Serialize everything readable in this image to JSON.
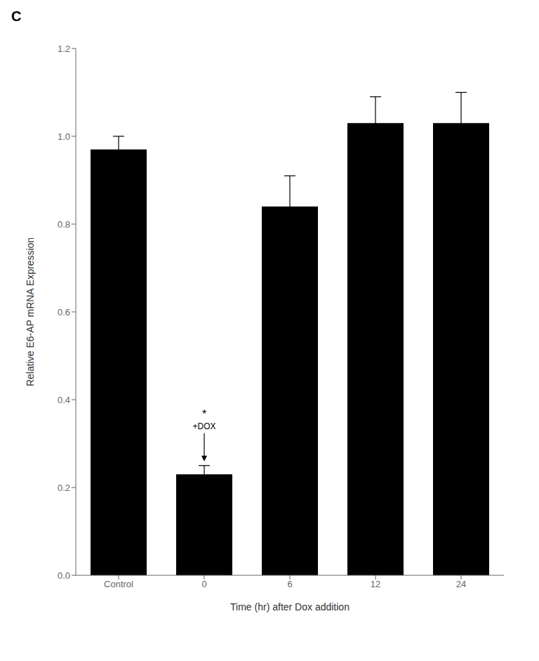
{
  "chart_data": {
    "type": "bar",
    "title": "C",
    "categories": [
      "Control",
      "0",
      "6",
      "12",
      "24"
    ],
    "values": [
      0.97,
      0.23,
      0.84,
      1.03,
      1.03
    ],
    "errors": [
      0.03,
      0.02,
      0.07,
      0.06,
      0.07
    ],
    "color": "#000000",
    "xlabel": "Time (hr) after Dox addition",
    "ylabel": "Relative E6-AP mRNA Expression",
    "ylim": [
      0,
      1.2
    ],
    "yticks": [
      {
        "value": 0.0,
        "label": "0.0"
      },
      0.2,
      0.4,
      0.6,
      0.8,
      {
        "value": 1.0,
        "label": "1.0"
      },
      1.2
    ],
    "grid": false,
    "annotations": [
      {
        "text": "*",
        "category": "0"
      },
      {
        "text": "+DOX",
        "category": "0"
      }
    ]
  }
}
